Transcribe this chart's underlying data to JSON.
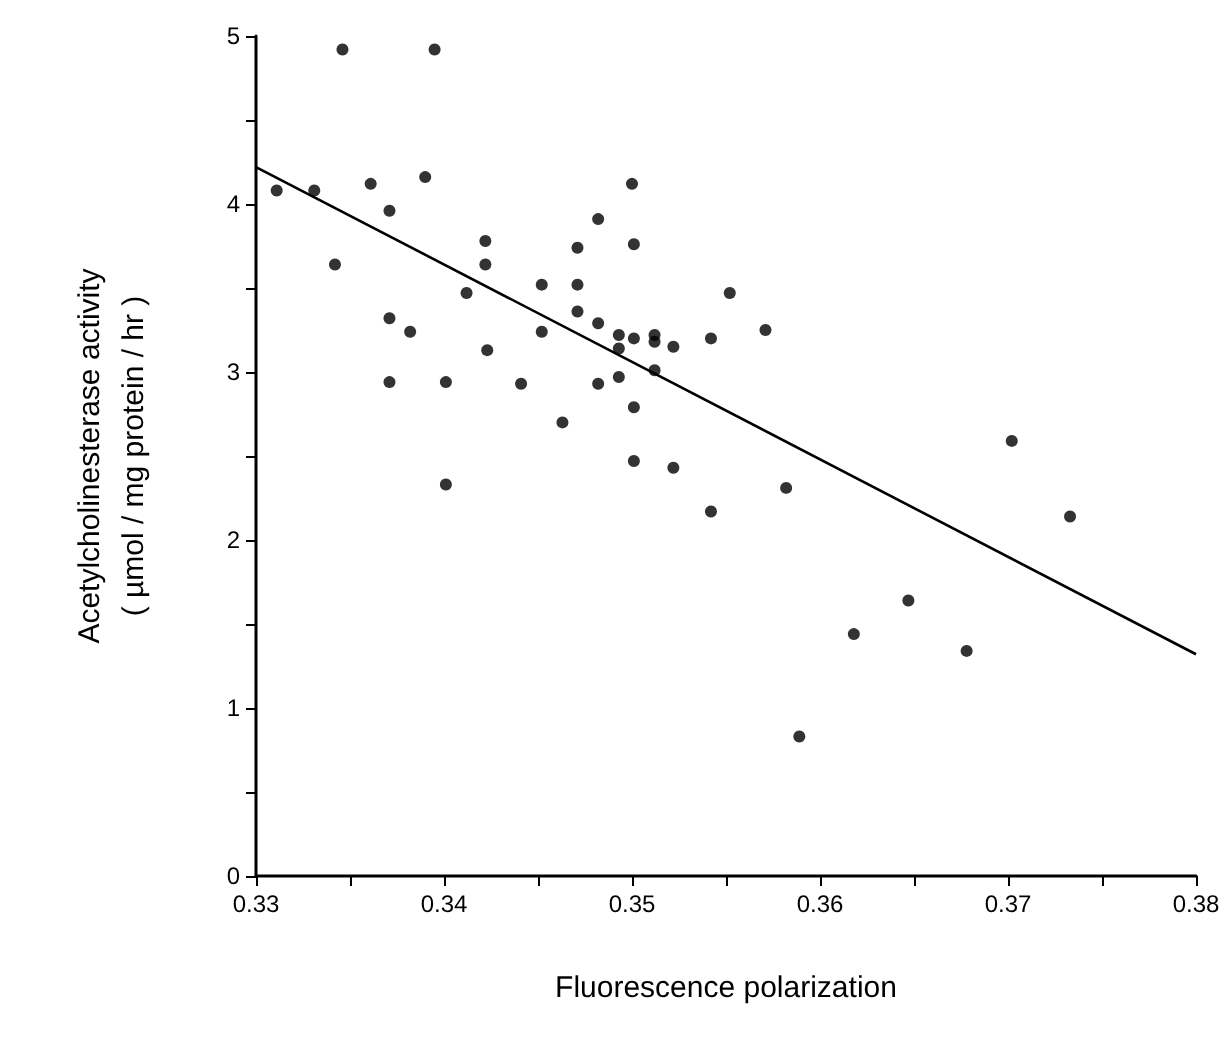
{
  "chart_data": {
    "type": "scatter",
    "xlabel": "Fluorescence polarization",
    "ylabel": "Acetylcholinesterase activity\n( µmol / mg protein / hr )",
    "xlim": [
      0.33,
      0.38
    ],
    "ylim": [
      0,
      5
    ],
    "xticks": [
      0.33,
      {
        "value": 0.335,
        "label": null
      },
      0.34,
      {
        "value": 0.345,
        "label": null
      },
      0.35,
      {
        "value": 0.355,
        "label": null
      },
      0.36,
      {
        "value": 0.365,
        "label": null
      },
      0.37,
      {
        "value": 0.375,
        "label": null
      },
      0.38
    ],
    "yticks": [
      0,
      {
        "value": 0.5,
        "label": null
      },
      1,
      {
        "value": 1.5,
        "label": null
      },
      2,
      {
        "value": 2.5,
        "label": null
      },
      3,
      {
        "value": 3.5,
        "label": null
      },
      4,
      {
        "value": 4.5,
        "label": null
      },
      5
    ],
    "grid": false,
    "marker": "circle",
    "series": [
      {
        "color": "#000000",
        "x": [
          0.3311,
          0.3331,
          0.3342,
          0.3361,
          0.3371,
          0.339,
          0.3371,
          0.3382,
          0.3371,
          0.3401,
          0.3401,
          0.3412,
          0.3422,
          0.3422,
          0.3423,
          0.3441,
          0.3452,
          0.3452,
          0.3463,
          0.3471,
          0.3471,
          0.3471,
          0.3482,
          0.3482,
          0.3482,
          0.3493,
          0.3493,
          0.3493,
          0.35,
          0.3501,
          0.3501,
          0.3501,
          0.3501,
          0.3512,
          0.3512,
          0.3512,
          0.3522,
          0.3522,
          0.3542,
          0.3542,
          0.3552,
          0.3571,
          0.3702,
          0.3733,
          0.3582,
          0.3589,
          0.3618,
          0.3647,
          0.3678,
          0.3346,
          0.3395
        ],
        "values": [
          4.08,
          4.08,
          3.64,
          4.12,
          3.96,
          4.16,
          3.32,
          3.24,
          2.94,
          2.94,
          2.33,
          3.47,
          3.78,
          3.64,
          3.13,
          2.93,
          3.52,
          3.24,
          2.7,
          3.74,
          3.52,
          3.36,
          3.91,
          3.29,
          2.93,
          3.22,
          3.14,
          2.97,
          4.12,
          3.76,
          3.2,
          2.79,
          2.47,
          3.22,
          3.18,
          3.01,
          3.15,
          2.43,
          3.2,
          2.17,
          3.47,
          3.25,
          2.59,
          2.14,
          2.31,
          0.83,
          1.44,
          1.64,
          1.34,
          4.92,
          4.92
        ]
      },
      {
        "type": "line",
        "color": "#000000",
        "x": [
          0.33,
          0.38
        ],
        "values": [
          4.22,
          1.32
        ],
        "line_style": "solid",
        "marker": "none"
      }
    ]
  }
}
